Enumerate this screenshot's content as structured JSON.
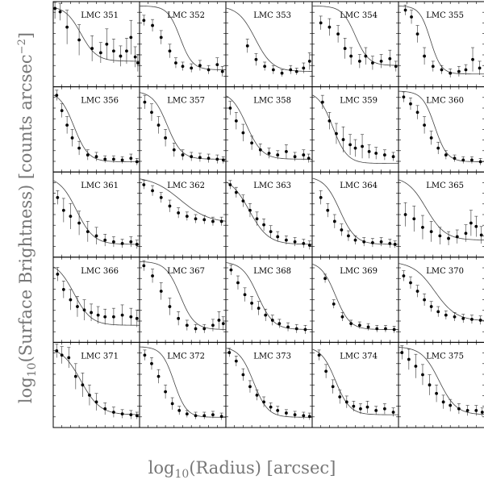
{
  "figure": {
    "ylabel_prefix": "log",
    "ylabel_sub": "10",
    "ylabel_main": "(Surface Brightness) [counts arcsec",
    "ylabel_sup": "−2",
    "ylabel_close": "]",
    "xlabel_prefix": "log",
    "xlabel_sub": "10",
    "xlabel_main": "(Radius) [arcsec]"
  },
  "chart_data": [
    {
      "type": "scatter",
      "title": "LMC 351",
      "profile": {
        "core": 0.2,
        "slope": 11,
        "floor": 0.3
      },
      "x": [
        0.02,
        0.08,
        0.16,
        0.3,
        0.45,
        0.55,
        0.62,
        0.7,
        0.78,
        0.85,
        0.9,
        0.95,
        0.98
      ],
      "y": [
        0.92,
        0.88,
        0.7,
        0.55,
        0.45,
        0.4,
        0.5,
        0.42,
        0.36,
        0.42,
        0.58,
        0.35,
        0.28
      ],
      "err": [
        0.12,
        0.1,
        0.2,
        0.18,
        0.15,
        0.12,
        0.18,
        0.14,
        0.12,
        0.15,
        0.2,
        0.12,
        0.1
      ]
    },
    {
      "type": "scatter",
      "title": "LMC 352",
      "profile": {
        "core": 0.35,
        "slope": 14,
        "floor": 0.2
      },
      "x": [
        0.05,
        0.15,
        0.25,
        0.35,
        0.42,
        0.5,
        0.6,
        0.7,
        0.8,
        0.9,
        0.96
      ],
      "y": [
        0.78,
        0.72,
        0.58,
        0.42,
        0.28,
        0.24,
        0.22,
        0.25,
        0.2,
        0.26,
        0.18
      ],
      "err": [
        0.06,
        0.07,
        0.08,
        0.08,
        0.06,
        0.05,
        0.05,
        0.06,
        0.05,
        0.08,
        0.06
      ]
    },
    {
      "type": "scatter",
      "title": "LMC 353",
      "profile": {
        "core": 0.22,
        "slope": 10,
        "floor": 0.18
      },
      "x": [
        0.25,
        0.35,
        0.45,
        0.55,
        0.65,
        0.75,
        0.82,
        0.9,
        0.97
      ],
      "y": [
        0.48,
        0.32,
        0.24,
        0.2,
        0.16,
        0.2,
        0.18,
        0.22,
        0.3
      ],
      "err": [
        0.08,
        0.07,
        0.05,
        0.05,
        0.04,
        0.05,
        0.04,
        0.06,
        0.1
      ]
    },
    {
      "type": "scatter",
      "title": "LMC 354",
      "profile": {
        "core": 0.38,
        "slope": 13,
        "floor": 0.25
      },
      "x": [
        0.1,
        0.2,
        0.3,
        0.38,
        0.45,
        0.55,
        0.62,
        0.7,
        0.8,
        0.9,
        0.97
      ],
      "y": [
        0.75,
        0.7,
        0.62,
        0.45,
        0.36,
        0.3,
        0.36,
        0.28,
        0.3,
        0.33,
        0.24
      ],
      "err": [
        0.08,
        0.1,
        0.1,
        0.12,
        0.1,
        0.08,
        0.1,
        0.08,
        0.08,
        0.1,
        0.06
      ]
    },
    {
      "type": "scatter",
      "title": "LMC 355",
      "profile": {
        "core": 0.25,
        "slope": 16,
        "floor": 0.15
      },
      "x": [
        0.08,
        0.15,
        0.22,
        0.3,
        0.4,
        0.5,
        0.6,
        0.7,
        0.78,
        0.86,
        0.94
      ],
      "y": [
        0.9,
        0.82,
        0.62,
        0.36,
        0.24,
        0.2,
        0.16,
        0.18,
        0.2,
        0.32,
        0.22
      ],
      "err": [
        0.06,
        0.08,
        0.1,
        0.1,
        0.06,
        0.05,
        0.05,
        0.06,
        0.06,
        0.14,
        0.08
      ]
    },
    {
      "type": "scatter",
      "title": "LMC 356",
      "profile": {
        "core": 0.12,
        "slope": 12,
        "floor": 0.12
      },
      "x": [
        0.04,
        0.1,
        0.16,
        0.22,
        0.3,
        0.4,
        0.5,
        0.6,
        0.7,
        0.8,
        0.9,
        0.97
      ],
      "y": [
        0.9,
        0.72,
        0.55,
        0.4,
        0.28,
        0.2,
        0.18,
        0.15,
        0.15,
        0.14,
        0.16,
        0.12
      ],
      "err": [
        0.06,
        0.08,
        0.1,
        0.1,
        0.08,
        0.06,
        0.05,
        0.04,
        0.04,
        0.04,
        0.05,
        0.04
      ]
    },
    {
      "type": "scatter",
      "title": "LMC 357",
      "profile": {
        "core": 0.2,
        "slope": 12,
        "floor": 0.15
      },
      "x": [
        0.06,
        0.14,
        0.22,
        0.3,
        0.4,
        0.5,
        0.6,
        0.7,
        0.8,
        0.9,
        0.97
      ],
      "y": [
        0.82,
        0.7,
        0.55,
        0.4,
        0.26,
        0.2,
        0.18,
        0.17,
        0.16,
        0.15,
        0.14
      ],
      "err": [
        0.08,
        0.1,
        0.1,
        0.1,
        0.08,
        0.06,
        0.05,
        0.05,
        0.05,
        0.05,
        0.04
      ]
    },
    {
      "type": "scatter",
      "title": "LMC 358",
      "profile": {
        "core": 0.12,
        "slope": 11,
        "floor": 0.15
      },
      "x": [
        0.05,
        0.12,
        0.2,
        0.3,
        0.4,
        0.5,
        0.6,
        0.7,
        0.8,
        0.9,
        0.96
      ],
      "y": [
        0.75,
        0.6,
        0.46,
        0.34,
        0.26,
        0.22,
        0.2,
        0.24,
        0.18,
        0.2,
        0.16
      ],
      "err": [
        0.08,
        0.1,
        0.1,
        0.08,
        0.07,
        0.06,
        0.05,
        0.08,
        0.05,
        0.06,
        0.05
      ]
    },
    {
      "type": "scatter",
      "title": "LMC 359",
      "profile": {
        "core": 0.12,
        "slope": 12,
        "floor": 0.1
      },
      "x": [
        0.12,
        0.2,
        0.28,
        0.36,
        0.44,
        0.5,
        0.58,
        0.66,
        0.74,
        0.84,
        0.94
      ],
      "y": [
        0.82,
        0.6,
        0.45,
        0.38,
        0.32,
        0.28,
        0.3,
        0.24,
        0.22,
        0.2,
        0.18
      ],
      "err": [
        0.08,
        0.1,
        0.12,
        0.15,
        0.12,
        0.1,
        0.14,
        0.08,
        0.07,
        0.06,
        0.05
      ]
    },
    {
      "type": "scatter",
      "title": "LMC 360",
      "profile": {
        "core": 0.3,
        "slope": 14,
        "floor": 0.12
      },
      "x": [
        0.06,
        0.14,
        0.22,
        0.3,
        0.38,
        0.46,
        0.55,
        0.65,
        0.75,
        0.85,
        0.95
      ],
      "y": [
        0.88,
        0.8,
        0.7,
        0.55,
        0.4,
        0.28,
        0.2,
        0.16,
        0.14,
        0.14,
        0.12
      ],
      "err": [
        0.06,
        0.07,
        0.08,
        0.1,
        0.08,
        0.07,
        0.05,
        0.04,
        0.04,
        0.04,
        0.04
      ]
    },
    {
      "type": "scatter",
      "title": "LMC 361",
      "profile": {
        "core": 0.15,
        "slope": 10,
        "floor": 0.15
      },
      "x": [
        0.05,
        0.12,
        0.2,
        0.3,
        0.4,
        0.5,
        0.6,
        0.7,
        0.8,
        0.9,
        0.97
      ],
      "y": [
        0.7,
        0.55,
        0.48,
        0.4,
        0.3,
        0.25,
        0.2,
        0.18,
        0.16,
        0.18,
        0.15
      ],
      "err": [
        0.08,
        0.14,
        0.15,
        0.14,
        0.12,
        0.1,
        0.07,
        0.06,
        0.05,
        0.06,
        0.05
      ]
    },
    {
      "type": "scatter",
      "title": "LMC 362",
      "profile": {
        "core": 0.35,
        "slope": 6,
        "floor": 0.4
      },
      "x": [
        0.05,
        0.15,
        0.25,
        0.35,
        0.45,
        0.55,
        0.65,
        0.75,
        0.85,
        0.95
      ],
      "y": [
        0.85,
        0.78,
        0.7,
        0.6,
        0.52,
        0.48,
        0.45,
        0.44,
        0.42,
        0.42
      ],
      "err": [
        0.05,
        0.06,
        0.06,
        0.07,
        0.06,
        0.05,
        0.05,
        0.05,
        0.05,
        0.05
      ]
    },
    {
      "type": "scatter",
      "title": "LMC 363",
      "profile": {
        "core": 0.15,
        "slope": 9,
        "floor": 0.15
      },
      "x": [
        0.05,
        0.12,
        0.2,
        0.28,
        0.36,
        0.44,
        0.52,
        0.6,
        0.7,
        0.8,
        0.9,
        0.97
      ],
      "y": [
        0.85,
        0.76,
        0.66,
        0.55,
        0.45,
        0.38,
        0.3,
        0.24,
        0.2,
        0.18,
        0.16,
        0.14
      ],
      "err": [
        0.05,
        0.06,
        0.07,
        0.08,
        0.08,
        0.07,
        0.07,
        0.06,
        0.05,
        0.05,
        0.05,
        0.05
      ]
    },
    {
      "type": "scatter",
      "title": "LMC 364",
      "profile": {
        "core": 0.2,
        "slope": 11,
        "floor": 0.15
      },
      "x": [
        0.1,
        0.18,
        0.26,
        0.34,
        0.42,
        0.5,
        0.6,
        0.7,
        0.8,
        0.9,
        0.96
      ],
      "y": [
        0.7,
        0.55,
        0.42,
        0.32,
        0.25,
        0.2,
        0.18,
        0.17,
        0.18,
        0.16,
        0.15
      ],
      "err": [
        0.08,
        0.08,
        0.08,
        0.07,
        0.06,
        0.05,
        0.05,
        0.05,
        0.05,
        0.05,
        0.04
      ]
    },
    {
      "type": "scatter",
      "title": "LMC 365",
      "profile": {
        "core": 0.2,
        "slope": 9,
        "floor": 0.2
      },
      "x": [
        0.08,
        0.18,
        0.28,
        0.38,
        0.48,
        0.58,
        0.68,
        0.78,
        0.84,
        0.9,
        0.96
      ],
      "y": [
        0.5,
        0.45,
        0.35,
        0.3,
        0.25,
        0.22,
        0.24,
        0.28,
        0.4,
        0.36,
        0.26
      ],
      "err": [
        0.14,
        0.15,
        0.14,
        0.12,
        0.1,
        0.08,
        0.08,
        0.1,
        0.15,
        0.12,
        0.1
      ]
    },
    {
      "type": "scatter",
      "title": "LMC 366",
      "profile": {
        "core": 0.12,
        "slope": 10,
        "floor": 0.2
      },
      "x": [
        0.05,
        0.12,
        0.2,
        0.28,
        0.36,
        0.44,
        0.52,
        0.6,
        0.7,
        0.8,
        0.9,
        0.97
      ],
      "y": [
        0.8,
        0.62,
        0.5,
        0.42,
        0.38,
        0.35,
        0.32,
        0.3,
        0.3,
        0.32,
        0.3,
        0.28
      ],
      "err": [
        0.08,
        0.1,
        0.12,
        0.12,
        0.12,
        0.1,
        0.1,
        0.09,
        0.1,
        0.12,
        0.1,
        0.1
      ]
    },
    {
      "type": "scatter",
      "title": "LMC 367",
      "profile": {
        "core": 0.35,
        "slope": 12,
        "floor": 0.15
      },
      "x": [
        0.05,
        0.15,
        0.25,
        0.35,
        0.45,
        0.55,
        0.65,
        0.75,
        0.85,
        0.92,
        0.97
      ],
      "y": [
        0.9,
        0.78,
        0.6,
        0.42,
        0.28,
        0.2,
        0.16,
        0.16,
        0.2,
        0.26,
        0.22
      ],
      "err": [
        0.06,
        0.08,
        0.1,
        0.1,
        0.08,
        0.06,
        0.05,
        0.05,
        0.07,
        0.1,
        0.08
      ]
    },
    {
      "type": "scatter",
      "title": "LMC 368",
      "profile": {
        "core": 0.25,
        "slope": 11,
        "floor": 0.15
      },
      "x": [
        0.06,
        0.14,
        0.22,
        0.3,
        0.38,
        0.46,
        0.54,
        0.62,
        0.72,
        0.82,
        0.92
      ],
      "y": [
        0.85,
        0.7,
        0.56,
        0.46,
        0.4,
        0.32,
        0.26,
        0.22,
        0.18,
        0.16,
        0.15
      ],
      "err": [
        0.06,
        0.08,
        0.08,
        0.08,
        0.08,
        0.07,
        0.06,
        0.05,
        0.05,
        0.05,
        0.05
      ]
    },
    {
      "type": "scatter",
      "title": "LMC 369",
      "profile": {
        "core": 0.15,
        "slope": 12,
        "floor": 0.15
      },
      "x": [
        0.15,
        0.25,
        0.35,
        0.45,
        0.55,
        0.65,
        0.75,
        0.85,
        0.95
      ],
      "y": [
        0.75,
        0.45,
        0.3,
        0.22,
        0.2,
        0.18,
        0.16,
        0.16,
        0.15
      ],
      "err": [
        0.05,
        0.05,
        0.05,
        0.04,
        0.04,
        0.04,
        0.04,
        0.04,
        0.04
      ]
    },
    {
      "type": "scatter",
      "title": "LMC 370",
      "profile": {
        "core": 0.3,
        "slope": 8,
        "floor": 0.25
      },
      "x": [
        0.06,
        0.14,
        0.22,
        0.3,
        0.38,
        0.46,
        0.55,
        0.65,
        0.75,
        0.85,
        0.95
      ],
      "y": [
        0.78,
        0.7,
        0.6,
        0.5,
        0.42,
        0.36,
        0.32,
        0.3,
        0.28,
        0.27,
        0.26
      ],
      "err": [
        0.06,
        0.07,
        0.07,
        0.07,
        0.06,
        0.06,
        0.05,
        0.05,
        0.05,
        0.05,
        0.05
      ]
    },
    {
      "type": "scatter",
      "title": "LMC 371",
      "profile": {
        "core": 0.2,
        "slope": 9,
        "floor": 0.15
      },
      "x": [
        0.04,
        0.1,
        0.18,
        0.26,
        0.34,
        0.42,
        0.5,
        0.6,
        0.7,
        0.8,
        0.9,
        0.97
      ],
      "y": [
        0.9,
        0.85,
        0.82,
        0.6,
        0.5,
        0.38,
        0.3,
        0.22,
        0.18,
        0.16,
        0.15,
        0.14
      ],
      "err": [
        0.08,
        0.1,
        0.12,
        0.15,
        0.14,
        0.12,
        0.1,
        0.07,
        0.06,
        0.05,
        0.05,
        0.04
      ]
    },
    {
      "type": "scatter",
      "title": "LMC 372",
      "profile": {
        "core": 0.28,
        "slope": 14,
        "floor": 0.12
      },
      "x": [
        0.06,
        0.14,
        0.22,
        0.3,
        0.38,
        0.46,
        0.55,
        0.65,
        0.75,
        0.85,
        0.95
      ],
      "y": [
        0.85,
        0.75,
        0.6,
        0.42,
        0.28,
        0.2,
        0.16,
        0.14,
        0.14,
        0.15,
        0.13
      ],
      "err": [
        0.06,
        0.07,
        0.08,
        0.08,
        0.07,
        0.05,
        0.04,
        0.04,
        0.04,
        0.04,
        0.04
      ]
    },
    {
      "type": "scatter",
      "title": "LMC 373",
      "profile": {
        "core": 0.2,
        "slope": 12,
        "floor": 0.12
      },
      "x": [
        0.04,
        0.12,
        0.2,
        0.28,
        0.36,
        0.44,
        0.52,
        0.6,
        0.7,
        0.8,
        0.9,
        0.97
      ],
      "y": [
        0.88,
        0.78,
        0.62,
        0.48,
        0.38,
        0.3,
        0.24,
        0.2,
        0.17,
        0.15,
        0.14,
        0.13
      ],
      "err": [
        0.05,
        0.06,
        0.07,
        0.07,
        0.06,
        0.06,
        0.05,
        0.05,
        0.04,
        0.04,
        0.04,
        0.04
      ]
    },
    {
      "type": "scatter",
      "title": "LMC 374",
      "profile": {
        "core": 0.15,
        "slope": 12,
        "floor": 0.15
      },
      "x": [
        0.08,
        0.16,
        0.24,
        0.32,
        0.4,
        0.48,
        0.56,
        0.64,
        0.74,
        0.84,
        0.94
      ],
      "y": [
        0.85,
        0.66,
        0.48,
        0.36,
        0.3,
        0.25,
        0.22,
        0.24,
        0.2,
        0.22,
        0.18
      ],
      "err": [
        0.06,
        0.08,
        0.08,
        0.08,
        0.07,
        0.06,
        0.06,
        0.07,
        0.05,
        0.06,
        0.05
      ]
    },
    {
      "type": "scatter",
      "title": "LMC 375",
      "profile": {
        "core": 0.35,
        "slope": 10,
        "floor": 0.15
      },
      "x": [
        0.04,
        0.12,
        0.2,
        0.28,
        0.36,
        0.44,
        0.52,
        0.6,
        0.7,
        0.8,
        0.9,
        0.97
      ],
      "y": [
        0.88,
        0.8,
        0.72,
        0.62,
        0.5,
        0.4,
        0.3,
        0.26,
        0.22,
        0.2,
        0.2,
        0.18
      ],
      "err": [
        0.08,
        0.12,
        0.14,
        0.12,
        0.12,
        0.1,
        0.08,
        0.07,
        0.06,
        0.06,
        0.06,
        0.05
      ]
    }
  ]
}
